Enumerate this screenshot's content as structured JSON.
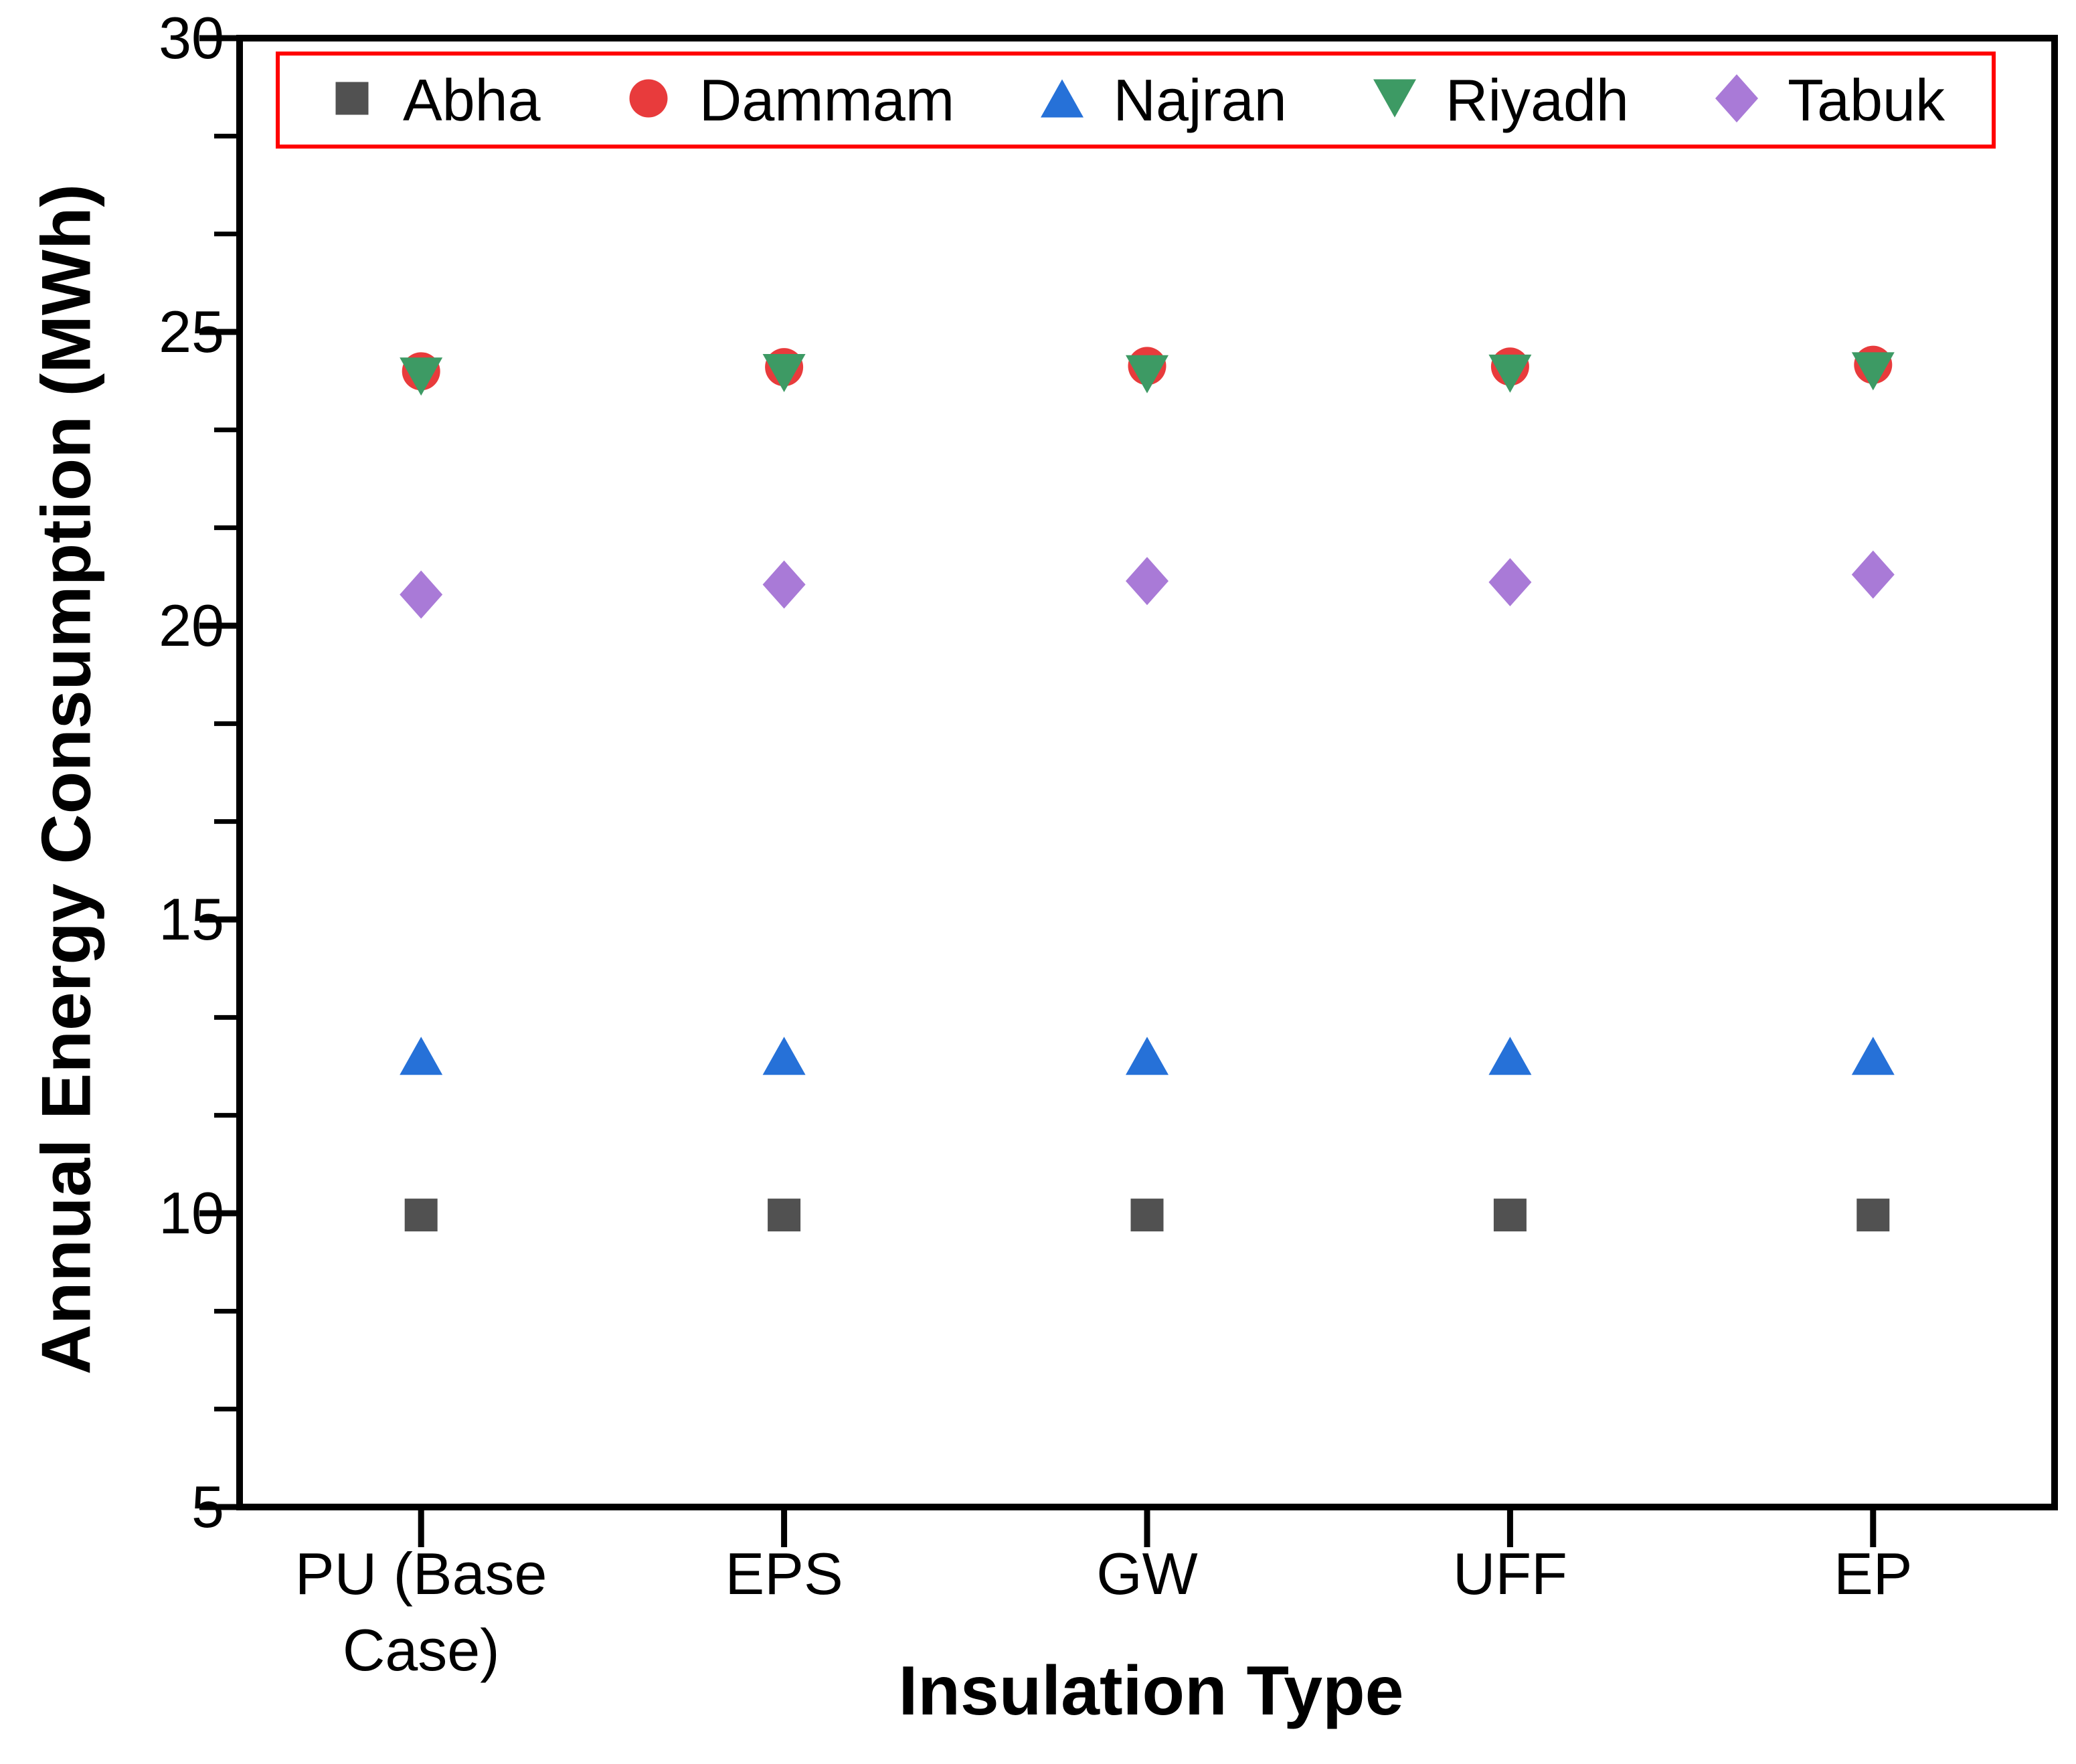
{
  "chart_data": {
    "type": "scatter",
    "title": "",
    "xlabel": "Insulation Type",
    "ylabel": "Annual Energy Consumption (MWh)",
    "categories": [
      "PU (Base Case)",
      "EPS",
      "GW",
      "UFF",
      "EP"
    ],
    "ylim": [
      5,
      30
    ],
    "y_major_ticks": [
      5,
      10,
      15,
      20,
      25,
      30
    ],
    "y_minor_divisions_per_major": 3,
    "grid": "off",
    "legend_position": "top-center-inside",
    "legend_border_color": "#ff0000",
    "series": [
      {
        "name": "Abha",
        "marker": "square",
        "color": "#515151",
        "values": [
          9.97,
          9.97,
          9.97,
          9.97,
          9.97
        ]
      },
      {
        "name": "Dammam",
        "marker": "circle",
        "color": "#e83b3c",
        "values": [
          24.33,
          24.4,
          24.42,
          24.41,
          24.44
        ]
      },
      {
        "name": "Najran",
        "marker": "triangle-up",
        "color": "#2671d8",
        "values": [
          12.68,
          12.68,
          12.68,
          12.68,
          12.68
        ]
      },
      {
        "name": "Riyadh",
        "marker": "triangle-down",
        "color": "#3d9a64",
        "values": [
          24.24,
          24.3,
          24.28,
          24.29,
          24.33
        ]
      },
      {
        "name": "Tabuk",
        "marker": "diamond",
        "color": "#a97ad7",
        "values": [
          20.53,
          20.7,
          20.76,
          20.74,
          20.87
        ]
      }
    ]
  }
}
